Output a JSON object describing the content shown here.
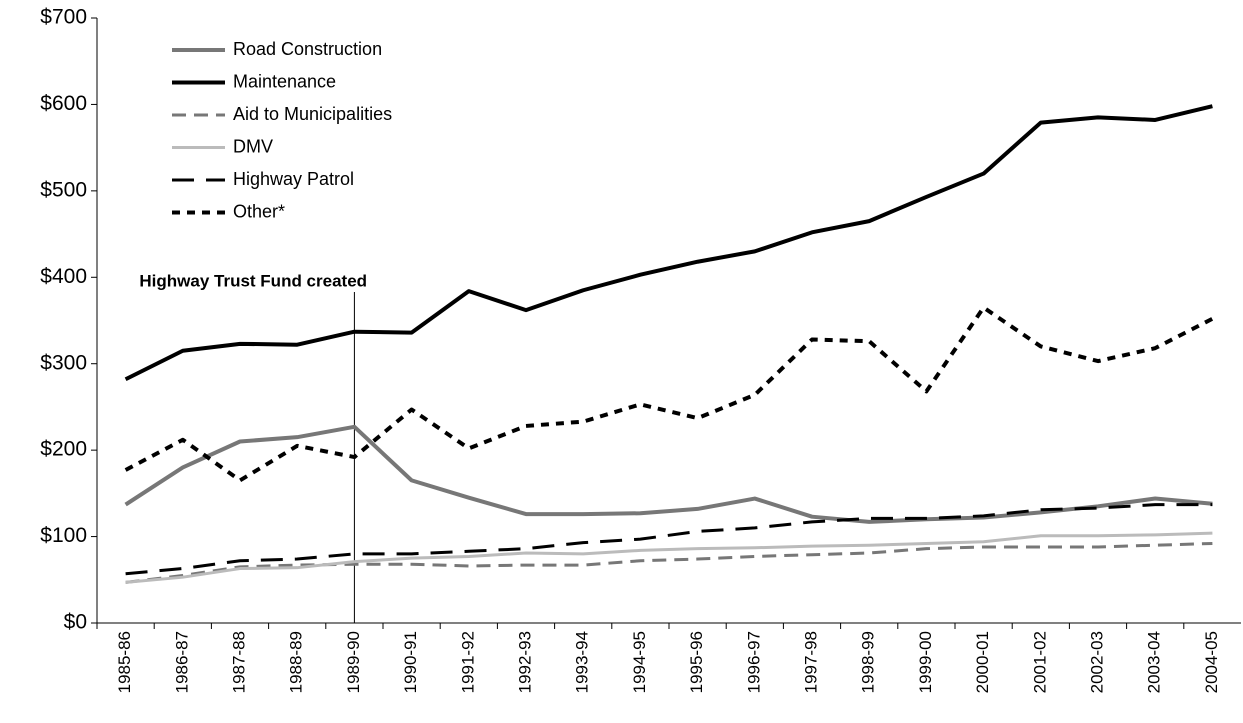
{
  "chart_data": {
    "type": "line",
    "categories": [
      "1985-86",
      "1986-87",
      "1987-88",
      "1988-89",
      "1989-90",
      "1990-91",
      "1991-92",
      "1992-93",
      "1993-94",
      "1994-95",
      "1995-96",
      "1996-97",
      "1997-98",
      "1998-99",
      "1999-00",
      "2000-01",
      "2001-02",
      "2002-03",
      "2003-04",
      "2004-05"
    ],
    "series": [
      {
        "name": "Road Construction",
        "color": "#777777",
        "dash": "solid",
        "linewidth": 4,
        "values": [
          137,
          180,
          210,
          215,
          227,
          165,
          145,
          126,
          126,
          127,
          132,
          144,
          123,
          117,
          120,
          122,
          128,
          135,
          144,
          138
        ]
      },
      {
        "name": "Maintenance",
        "color": "#000000",
        "dash": "solid",
        "linewidth": 4,
        "values": [
          282,
          315,
          323,
          322,
          337,
          336,
          384,
          362,
          385,
          403,
          418,
          430,
          452,
          465,
          493,
          520,
          579,
          585,
          582,
          598
        ]
      },
      {
        "name": "Aid to Municipalities",
        "color": "#777777",
        "dash": "dashed",
        "linewidth": 3,
        "values": [
          47,
          55,
          65,
          67,
          68,
          68,
          66,
          67,
          67,
          72,
          74,
          77,
          79,
          81,
          86,
          88,
          88,
          88,
          90,
          92
        ]
      },
      {
        "name": "DMV",
        "color": "#bbbbbb",
        "dash": "solid",
        "linewidth": 3,
        "values": [
          47,
          53,
          63,
          64,
          71,
          75,
          77,
          81,
          80,
          84,
          86,
          87,
          89,
          90,
          92,
          94,
          101,
          101,
          102,
          104
        ]
      },
      {
        "name": "Highway Patrol",
        "color": "#000000",
        "dash": "longdash",
        "linewidth": 3,
        "values": [
          57,
          63,
          72,
          74,
          80,
          80,
          83,
          86,
          93,
          97,
          106,
          110,
          117,
          121,
          121,
          124,
          131,
          133,
          137,
          137
        ]
      },
      {
        "name": "Other*",
        "color": "#000000",
        "dash": "dotted",
        "linewidth": 4,
        "values": [
          177,
          212,
          165,
          205,
          192,
          247,
          202,
          228,
          233,
          253,
          237,
          264,
          328,
          326,
          268,
          365,
          320,
          303,
          318,
          352
        ]
      }
    ],
    "ylim": [
      0,
      700
    ],
    "yticks": [
      {
        "value": 0,
        "label": "$0"
      },
      {
        "value": 100,
        "label": "$100"
      },
      {
        "value": 200,
        "label": "$200"
      },
      {
        "value": 300,
        "label": "$300"
      },
      {
        "value": 400,
        "label": "$400"
      },
      {
        "value": 500,
        "label": "$500"
      },
      {
        "value": 600,
        "label": "$600"
      },
      {
        "value": 700,
        "label": "$700"
      }
    ],
    "grid": false,
    "legend": "upper left",
    "annotations": [
      {
        "text": "Highway Trust Fund created",
        "x": "1989-90"
      }
    ]
  }
}
